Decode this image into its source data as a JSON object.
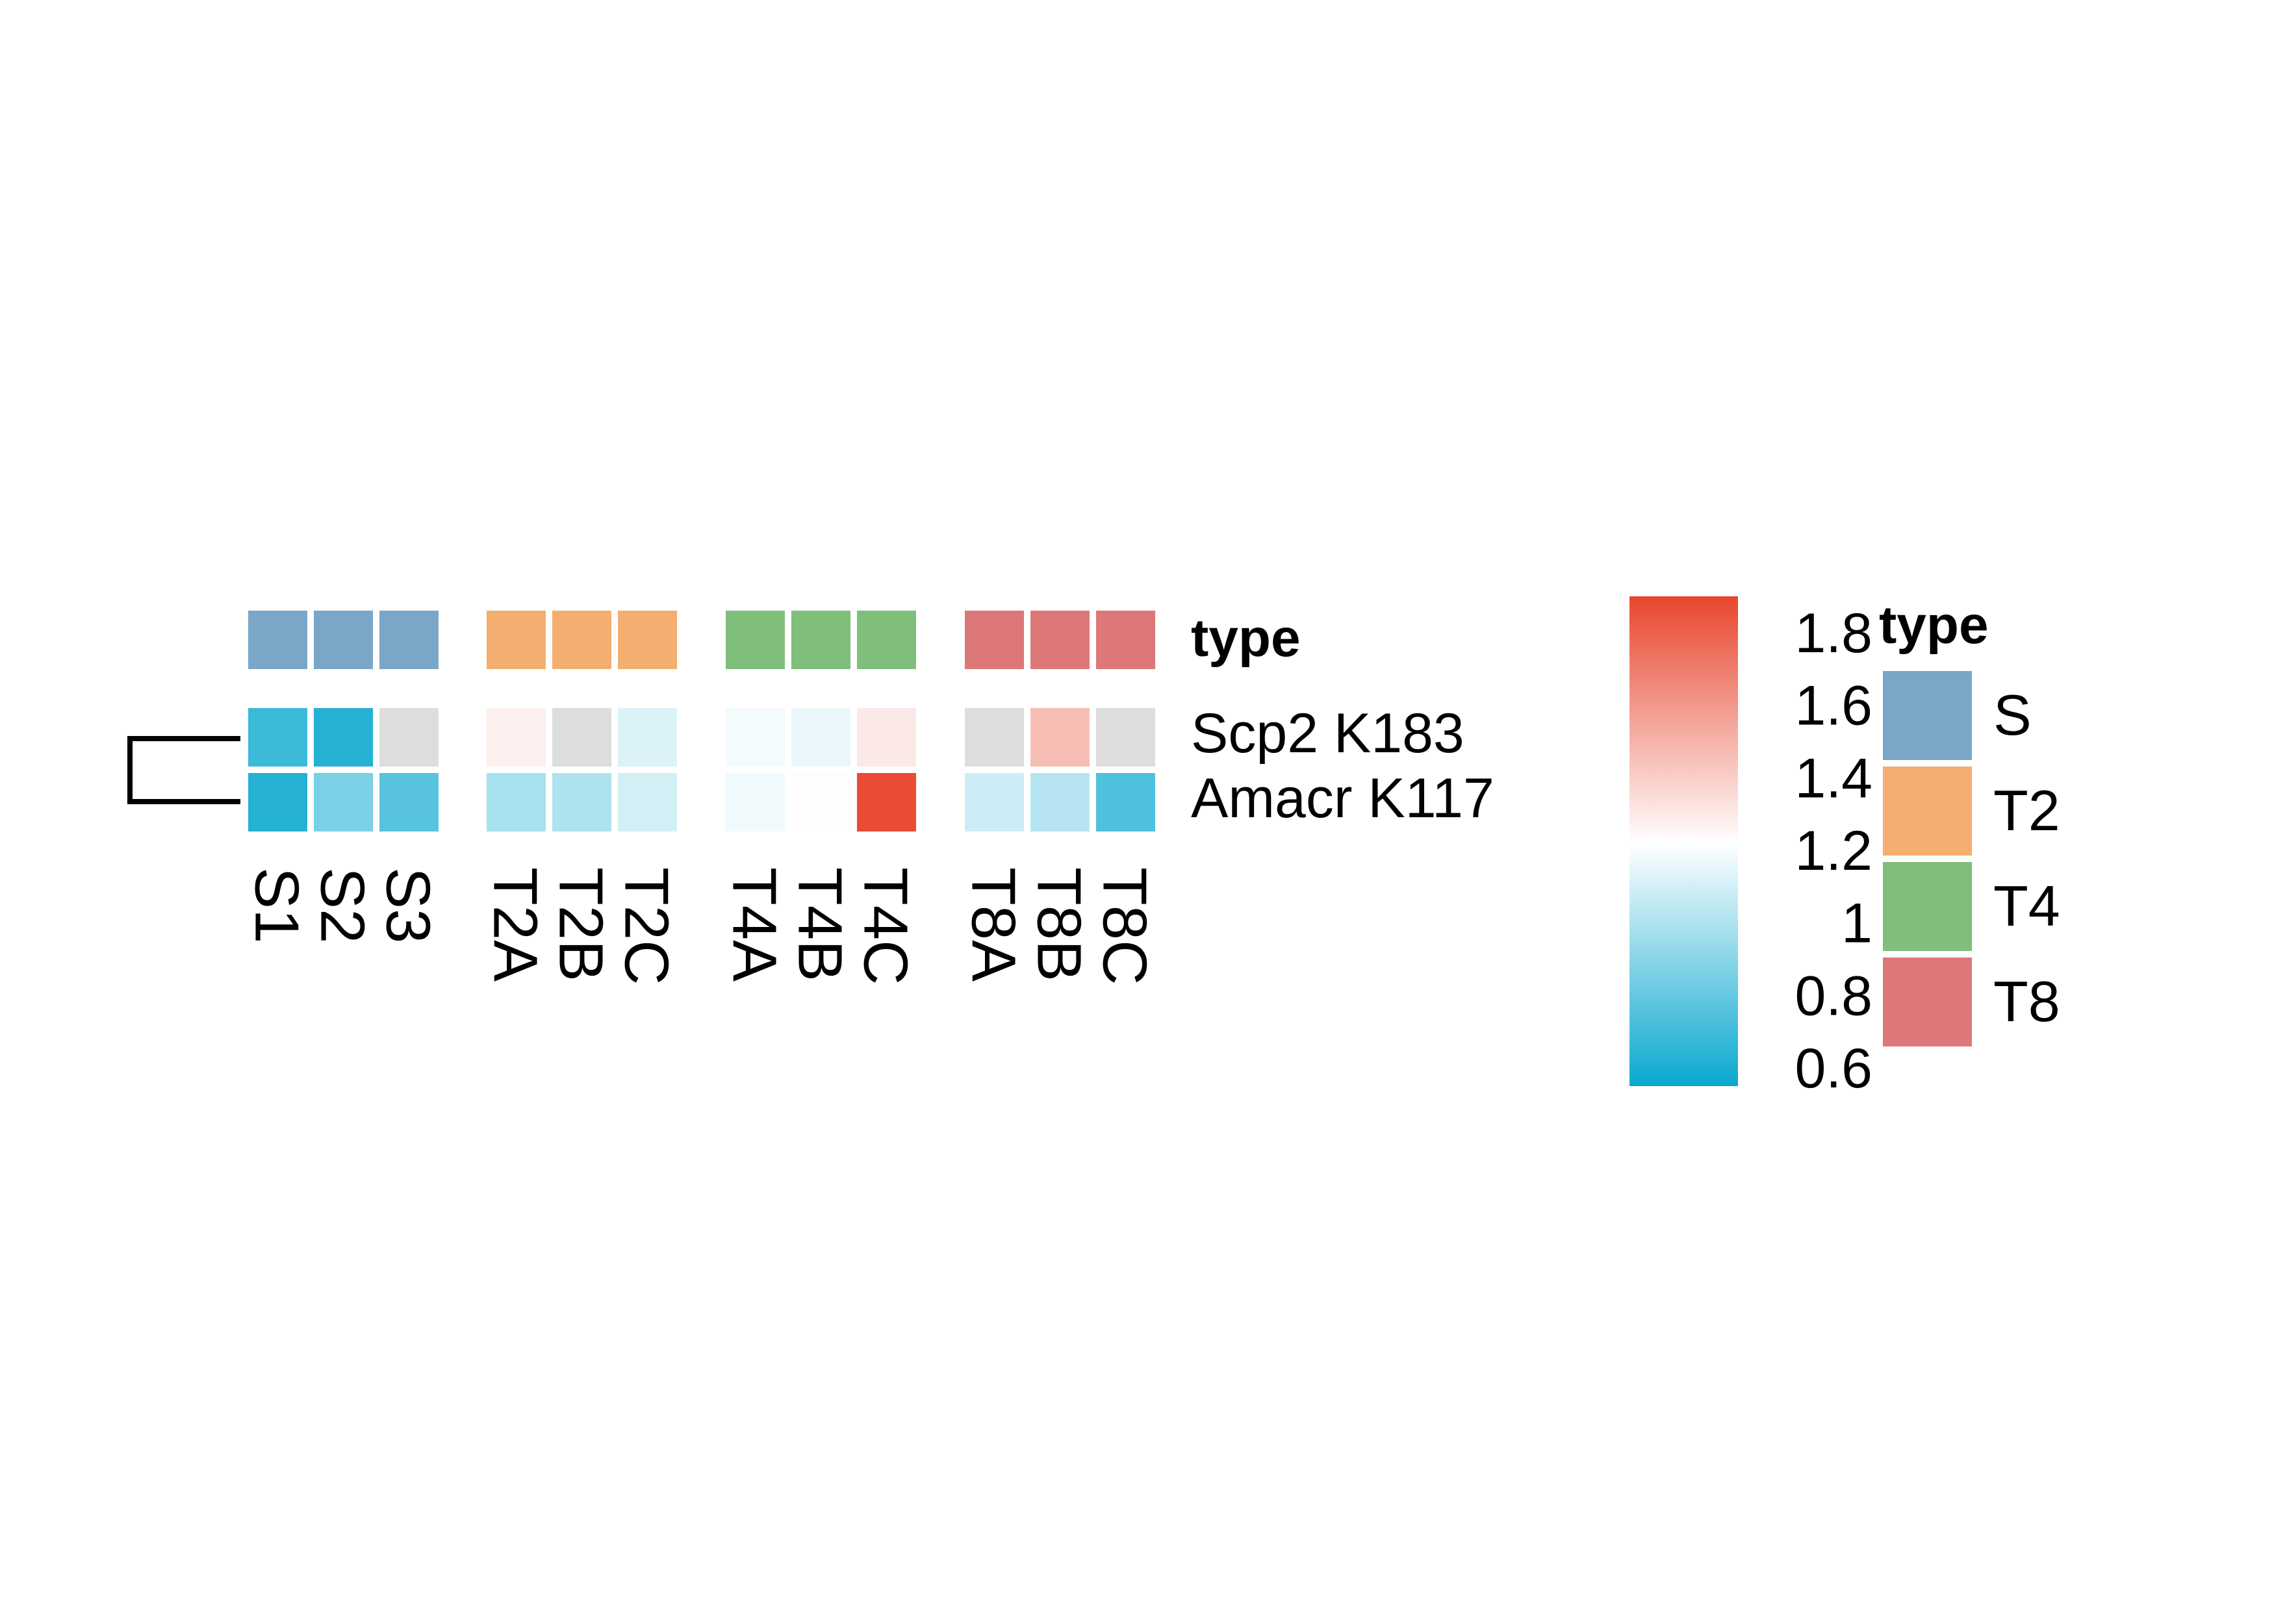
{
  "chart_data": {
    "type": "heatmap",
    "title": "",
    "columns": [
      "S1",
      "S2",
      "S3",
      "T2A",
      "T2B",
      "T2C",
      "T4A",
      "T4B",
      "T4C",
      "T8A",
      "T8B",
      "T8C"
    ],
    "column_groups": [
      "S",
      "S",
      "S",
      "T2",
      "T2",
      "T2",
      "T4",
      "T4",
      "T4",
      "T8",
      "T8",
      "T8"
    ],
    "rows": [
      "Scp2 K183",
      "Amacr K117"
    ],
    "values": [
      [
        0.68,
        0.62,
        null,
        1.28,
        null,
        1.12,
        1.19,
        1.16,
        1.3,
        null,
        1.46,
        null
      ],
      [
        0.62,
        0.86,
        0.76,
        0.98,
        1.0,
        1.1,
        1.18,
        1.23,
        1.88,
        1.08,
        1.02,
        0.74
      ]
    ],
    "missing_color": "#dddddd",
    "row_dendrogram": true,
    "annotation": {
      "name": "type",
      "colors": {
        "S": "#7aa7c8",
        "T2": "#f4ae6f",
        "T4": "#80bf7b",
        "T8": "#dc7878"
      }
    },
    "color_scale": {
      "min": 0.55,
      "mid": 1.22,
      "max": 1.9,
      "low_color": "#0aa8cf",
      "mid_color": "#ffffff",
      "high_color": "#e8462f",
      "ticks": [
        "0.6",
        "0.8",
        "1",
        "1.2",
        "1.4",
        "1.6",
        "1.8"
      ],
      "tick_values": [
        0.6,
        0.8,
        1.0,
        1.2,
        1.4,
        1.6,
        1.8
      ]
    },
    "legend": {
      "title": "type",
      "entries": [
        {
          "label": "S",
          "color": "#7aa7c8"
        },
        {
          "label": "T2",
          "color": "#f4ae6f"
        },
        {
          "label": "T4",
          "color": "#80bf7b"
        },
        {
          "label": "T8",
          "color": "#dc7878"
        }
      ]
    }
  }
}
